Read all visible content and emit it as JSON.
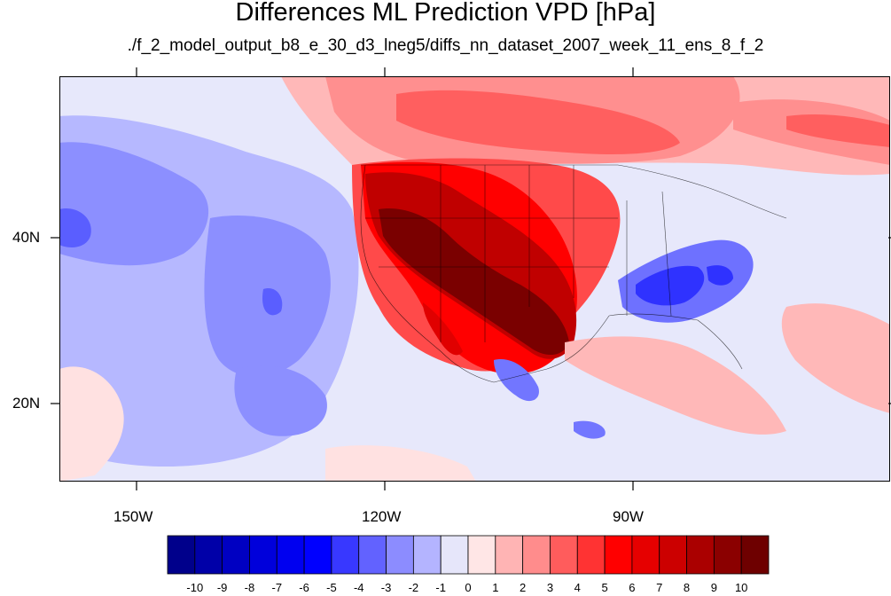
{
  "header": {
    "title": "Differences ML Prediction VPD [hPa]",
    "subtitle": "./f_2_model_output_b8_e_30_d3_lneg5/diffs_nn_dataset_2007_week_11_ens_8_f_2"
  },
  "axes": {
    "x_labels": [
      "150W",
      "120W",
      "90W"
    ],
    "y_labels": [
      "40N",
      "20N"
    ]
  },
  "colorbar": {
    "labels": [
      "-10",
      "-9",
      "-8",
      "-7",
      "-6",
      "-5",
      "-4",
      "-3",
      "-2",
      "-1",
      "0",
      "1",
      "2",
      "3",
      "4",
      "5",
      "6",
      "7",
      "8",
      "9",
      "10"
    ],
    "colors": [
      "#00008b",
      "#0000a8",
      "#0000c2",
      "#0000db",
      "#0000f0",
      "#0000ff",
      "#3838ff",
      "#6262ff",
      "#8c8cff",
      "#b4b4ff",
      "#e6e6fa",
      "#ffe6e6",
      "#ffb4b4",
      "#ff8c8c",
      "#ff5c5c",
      "#ff3333",
      "#ff0000",
      "#e60000",
      "#cc0000",
      "#aa0000",
      "#8b0000",
      "#6e0000"
    ]
  },
  "map": {
    "region": "contiguous United States, eastern North Pacific, Mexico",
    "lon_range": [
      -160,
      -60
    ],
    "lat_range": [
      11,
      60
    ]
  }
}
